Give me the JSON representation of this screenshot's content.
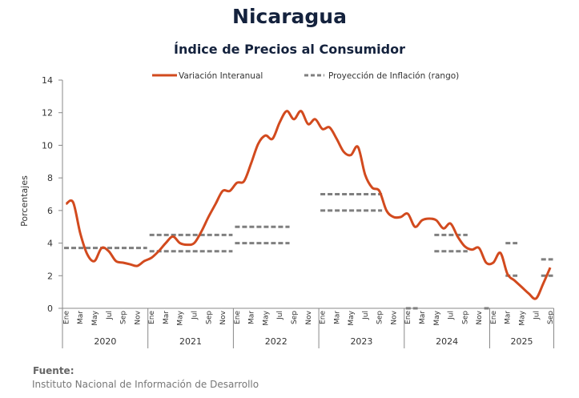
{
  "chart_data": {
    "type": "line",
    "title": "Nicaragua",
    "subtitle": "Índice de Precios al Consumidor",
    "ylabel": "Porcentajes",
    "xlabel": "",
    "ylim": [
      0,
      14
    ],
    "yticks": [
      0,
      2,
      4,
      6,
      8,
      10,
      12,
      14
    ],
    "grid": false,
    "legend_position": "top",
    "month_labels": [
      "Ene",
      "Mar",
      "May",
      "Jul",
      "Sep",
      "Nov"
    ],
    "years": [
      "2020",
      "2021",
      "2022",
      "2023",
      "2024",
      "2025"
    ],
    "series": [
      {
        "name": "Variación Interanual",
        "color": "#d24a1e",
        "start": "2020-01",
        "values": [
          6.4,
          6.5,
          4.6,
          3.3,
          2.9,
          3.7,
          3.5,
          2.9,
          2.8,
          2.7,
          2.6,
          2.9,
          3.1,
          3.5,
          4.0,
          4.4,
          4.0,
          3.9,
          4.0,
          4.7,
          5.6,
          6.4,
          7.2,
          7.2,
          7.7,
          7.8,
          8.9,
          10.1,
          10.6,
          10.4,
          11.4,
          12.1,
          11.6,
          12.1,
          11.3,
          11.6,
          11.0,
          11.1,
          10.4,
          9.6,
          9.4,
          9.9,
          8.2,
          7.4,
          7.2,
          6.0,
          5.6,
          5.6,
          5.8,
          5.0,
          5.4,
          5.5,
          5.4,
          4.9,
          5.2,
          4.4,
          3.8,
          3.6,
          3.7,
          2.8,
          2.8,
          3.4,
          2.1,
          1.7,
          1.3,
          0.9,
          0.6,
          1.5,
          2.5
        ]
      },
      {
        "name": "Proyección de Inflación (rango)",
        "color": "#7f7f7f",
        "style": "dashed",
        "segments": [
          {
            "from": "2020-01",
            "to": "2020-12",
            "value": 3.7
          },
          {
            "from": "2021-01",
            "to": "2021-12",
            "value": 4.5
          },
          {
            "from": "2021-01",
            "to": "2021-12",
            "value": 3.5
          },
          {
            "from": "2022-01",
            "to": "2022-08",
            "value": 5.0
          },
          {
            "from": "2022-01",
            "to": "2022-08",
            "value": 4.0
          },
          {
            "from": "2023-01",
            "to": "2023-09",
            "value": 7.0
          },
          {
            "from": "2023-01",
            "to": "2023-09",
            "value": 6.0
          },
          {
            "from": "2024-01",
            "to": "2024-02",
            "value": 0.0
          },
          {
            "from": "2024-05",
            "to": "2024-09",
            "value": 4.5
          },
          {
            "from": "2024-05",
            "to": "2024-09",
            "value": 3.5
          },
          {
            "from": "2024-12",
            "to": "2024-12",
            "value": 0.0
          },
          {
            "from": "2025-03",
            "to": "2025-04",
            "value": 4.0
          },
          {
            "from": "2025-03",
            "to": "2025-04",
            "value": 2.0
          },
          {
            "from": "2025-08",
            "to": "2025-09",
            "value": 3.0
          },
          {
            "from": "2025-08",
            "to": "2025-09",
            "value": 2.0
          }
        ]
      }
    ]
  },
  "source": {
    "heading": "Fuente:",
    "text": "Instituto Nacional de Información de Desarrollo"
  }
}
